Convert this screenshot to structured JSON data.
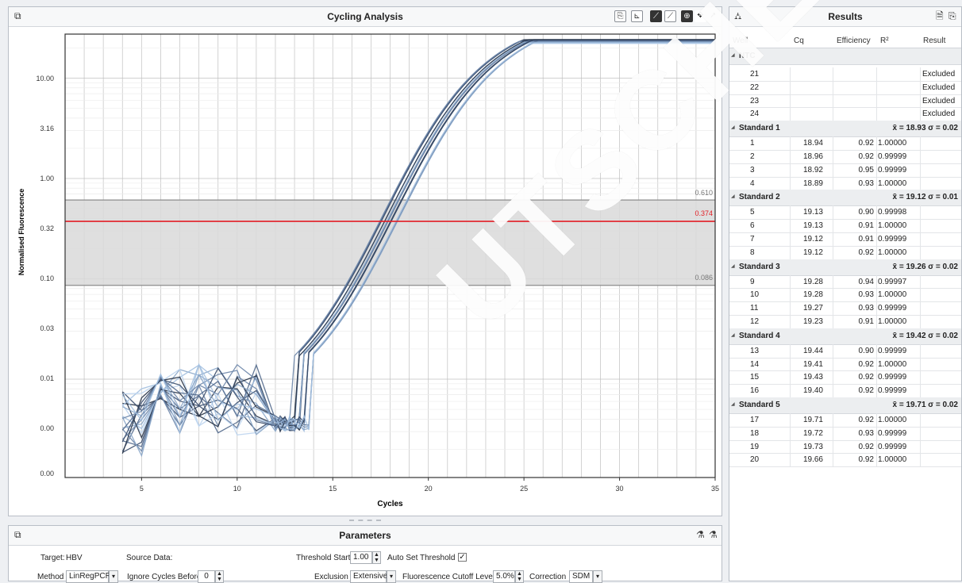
{
  "cycling": {
    "title": "Cycling Analysis",
    "threshold_upper_label": "0.610",
    "threshold_label": "0.374",
    "threshold_lower_label": "0.086"
  },
  "chart_data": {
    "type": "line",
    "xlabel": "Cycles",
    "ylabel": "Normalised Fluorescence",
    "x_ticks": [
      5,
      10,
      15,
      20,
      25,
      30,
      35
    ],
    "y_ticks": [
      "10.00",
      "3.16",
      "1.00",
      "0.32",
      "0.10",
      "0.03",
      "0.01",
      "0.00",
      "0.00"
    ],
    "xlim": [
      1,
      35
    ],
    "y_scale": "log",
    "threshold": 0.374,
    "threshold_band": [
      0.086,
      0.61
    ],
    "series_count": 20,
    "series_colors": [
      "#263246",
      "#3a4d6b",
      "#52698c",
      "#6d86aa",
      "#88a5c8",
      "#a3c0e0",
      "#bcd4ee"
    ],
    "crossing_cycles": [
      18.94,
      18.96,
      18.92,
      18.89,
      19.13,
      19.13,
      19.12,
      19.12,
      19.28,
      19.28,
      19.27,
      19.23,
      19.44,
      19.41,
      19.43,
      19.4,
      19.71,
      19.72,
      19.73,
      19.66
    ],
    "grid": true
  },
  "results": {
    "title": "Results",
    "columns": [
      "Well",
      "Cq",
      "Efficiency",
      "R²",
      "Result"
    ],
    "groups": [
      {
        "name": "NTC",
        "stat": "",
        "rows": [
          {
            "well": "21",
            "cq": "",
            "eff": "",
            "r2": "",
            "result": "Excluded"
          },
          {
            "well": "22",
            "cq": "",
            "eff": "",
            "r2": "",
            "result": "Excluded"
          },
          {
            "well": "23",
            "cq": "",
            "eff": "",
            "r2": "",
            "result": "Excluded"
          },
          {
            "well": "24",
            "cq": "",
            "eff": "",
            "r2": "",
            "result": "Excluded"
          }
        ]
      },
      {
        "name": "Standard 1",
        "stat": "x̄ = 18.93 σ = 0.02",
        "rows": [
          {
            "well": "1",
            "cq": "18.94",
            "eff": "0.92",
            "r2": "1.00000",
            "result": ""
          },
          {
            "well": "2",
            "cq": "18.96",
            "eff": "0.92",
            "r2": "0.99999",
            "result": ""
          },
          {
            "well": "3",
            "cq": "18.92",
            "eff": "0.95",
            "r2": "0.99999",
            "result": ""
          },
          {
            "well": "4",
            "cq": "18.89",
            "eff": "0.93",
            "r2": "1.00000",
            "result": ""
          }
        ]
      },
      {
        "name": "Standard 2",
        "stat": "x̄ = 19.12 σ = 0.01",
        "rows": [
          {
            "well": "5",
            "cq": "19.13",
            "eff": "0.90",
            "r2": "0.99998",
            "result": ""
          },
          {
            "well": "6",
            "cq": "19.13",
            "eff": "0.91",
            "r2": "1.00000",
            "result": ""
          },
          {
            "well": "7",
            "cq": "19.12",
            "eff": "0.91",
            "r2": "0.99999",
            "result": ""
          },
          {
            "well": "8",
            "cq": "19.12",
            "eff": "0.92",
            "r2": "1.00000",
            "result": ""
          }
        ]
      },
      {
        "name": "Standard 3",
        "stat": "x̄ = 19.26 σ = 0.02",
        "rows": [
          {
            "well": "9",
            "cq": "19.28",
            "eff": "0.94",
            "r2": "0.99997",
            "result": ""
          },
          {
            "well": "10",
            "cq": "19.28",
            "eff": "0.93",
            "r2": "1.00000",
            "result": ""
          },
          {
            "well": "11",
            "cq": "19.27",
            "eff": "0.93",
            "r2": "0.99999",
            "result": ""
          },
          {
            "well": "12",
            "cq": "19.23",
            "eff": "0.91",
            "r2": "1.00000",
            "result": ""
          }
        ]
      },
      {
        "name": "Standard 4",
        "stat": "x̄ = 19.42 σ = 0.02",
        "rows": [
          {
            "well": "13",
            "cq": "19.44",
            "eff": "0.90",
            "r2": "0.99999",
            "result": ""
          },
          {
            "well": "14",
            "cq": "19.41",
            "eff": "0.92",
            "r2": "1.00000",
            "result": ""
          },
          {
            "well": "15",
            "cq": "19.43",
            "eff": "0.92",
            "r2": "0.99999",
            "result": ""
          },
          {
            "well": "16",
            "cq": "19.40",
            "eff": "0.92",
            "r2": "0.99999",
            "result": ""
          }
        ]
      },
      {
        "name": "Standard 5",
        "stat": "x̄ = 19.71 σ = 0.02",
        "rows": [
          {
            "well": "17",
            "cq": "19.71",
            "eff": "0.92",
            "r2": "1.00000",
            "result": ""
          },
          {
            "well": "18",
            "cq": "19.72",
            "eff": "0.93",
            "r2": "0.99999",
            "result": ""
          },
          {
            "well": "19",
            "cq": "19.73",
            "eff": "0.92",
            "r2": "0.99999",
            "result": ""
          },
          {
            "well": "20",
            "cq": "19.66",
            "eff": "0.92",
            "r2": "1.00000",
            "result": ""
          }
        ]
      }
    ]
  },
  "parameters": {
    "title": "Parameters",
    "target_label": "Target:",
    "target_value": "HBV",
    "source_label": "Source Data:",
    "source_value": "",
    "threshold_start_label": "Threshold Start",
    "threshold_start_value": "1.00",
    "auto_set_label": "Auto Set Threshold",
    "method_label": "Method",
    "method_value": "LinRegPCR",
    "ignore_label": "Ignore Cycles Before",
    "ignore_value": "0",
    "exclusion_label": "Exclusion",
    "exclusion_value": "Extensive",
    "cutoff_label": "Fluorescence Cutoff Level",
    "cutoff_value": "5.0%",
    "correction_label": "Correction",
    "correction_value": "SDM"
  },
  "watermark": "UTSCHER SA",
  "icons": [
    "expand-icon",
    "chart-tools-icon",
    "zoom-icon",
    "pan-icon",
    "pointer-icon",
    "tree-icon",
    "export-icon",
    "settings-icon"
  ]
}
